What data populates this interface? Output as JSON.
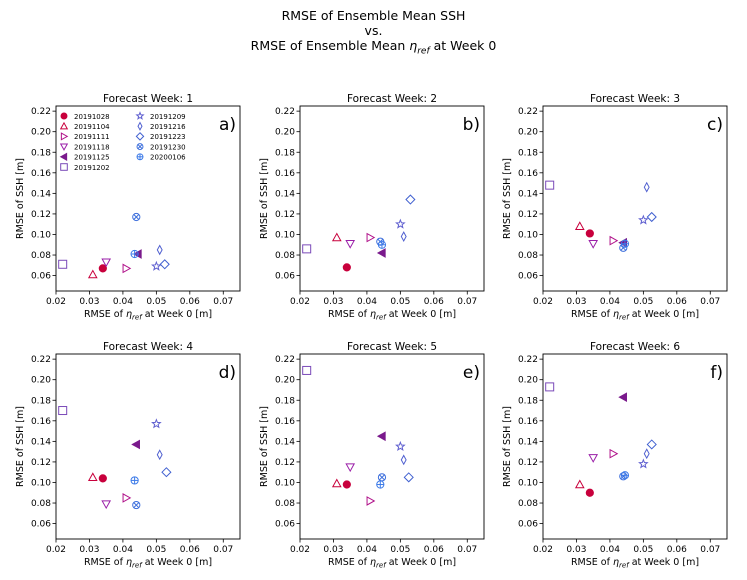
{
  "suptitle": {
    "line1": "RMSE of Ensemble Mean SSH",
    "line2": "vs.",
    "line3_prefix": "RMSE of Ensemble Mean ",
    "line3_symbol": "η",
    "line3_sub": "ref",
    "line3_suffix": " at Week 0"
  },
  "colors": {
    "c20191028": "#c8003c",
    "c20191104": "#c8003c",
    "c20191111": "#b0128a",
    "c20191118": "#9a1ea8",
    "c20191125": "#7a1a8c",
    "c20191202": "#7a4ab8",
    "c20191209": "#6060d0",
    "c20191216": "#5060d0",
    "c20191223": "#4060d0",
    "c20191230": "#3c6edc",
    "c20200106": "#3c7ae8"
  },
  "legend": [
    {
      "label": "20191028",
      "marker": "circle-filled",
      "colorKey": "c20191028"
    },
    {
      "label": "20191104",
      "marker": "triangle-up",
      "colorKey": "c20191104"
    },
    {
      "label": "20191111",
      "marker": "triangle-right",
      "colorKey": "c20191111"
    },
    {
      "label": "20191118",
      "marker": "triangle-down",
      "colorKey": "c20191118"
    },
    {
      "label": "20191125",
      "marker": "triangle-left-filled",
      "colorKey": "c20191125"
    },
    {
      "label": "20191202",
      "marker": "square",
      "colorKey": "c20191202"
    },
    {
      "label": "20191209",
      "marker": "star",
      "colorKey": "c20191209"
    },
    {
      "label": "20191216",
      "marker": "thin-diamond",
      "colorKey": "c20191216"
    },
    {
      "label": "20191223",
      "marker": "diamond",
      "colorKey": "c20191223"
    },
    {
      "label": "20191230",
      "marker": "x-circle",
      "colorKey": "c20191230"
    },
    {
      "label": "20200106",
      "marker": "plus-circle",
      "colorKey": "c20200106"
    }
  ],
  "chart_data": [
    {
      "type": "scatter",
      "title": "Forecast Week: 1",
      "panel_label": "a)",
      "xlabel_prefix": "RMSE of ",
      "xlabel_symbol": "η",
      "xlabel_sub": "ref",
      "xlabel_suffix": " at Week 0 [m]",
      "ylabel": "RMSE of SSH [m]",
      "xlim": [
        0.02,
        0.075
      ],
      "ylim": [
        0.045,
        0.225
      ],
      "xticks": [
        "0.02",
        "0.03",
        "0.04",
        "0.05",
        "0.06",
        "0.07"
      ],
      "yticks": [
        "0.06",
        "0.08",
        "0.10",
        "0.12",
        "0.14",
        "0.16",
        "0.18",
        "0.20",
        "0.22"
      ],
      "points": [
        {
          "series": "20191028",
          "x": 0.034,
          "y": 0.067
        },
        {
          "series": "20191104",
          "x": 0.031,
          "y": 0.061
        },
        {
          "series": "20191111",
          "x": 0.041,
          "y": 0.067
        },
        {
          "series": "20191118",
          "x": 0.035,
          "y": 0.073
        },
        {
          "series": "20191125",
          "x": 0.0445,
          "y": 0.081
        },
        {
          "series": "20191202",
          "x": 0.022,
          "y": 0.071
        },
        {
          "series": "20191209",
          "x": 0.05,
          "y": 0.069
        },
        {
          "series": "20191216",
          "x": 0.051,
          "y": 0.085
        },
        {
          "series": "20191223",
          "x": 0.0525,
          "y": 0.071
        },
        {
          "series": "20191230",
          "x": 0.044,
          "y": 0.117
        },
        {
          "series": "20200106",
          "x": 0.0435,
          "y": 0.081
        }
      ]
    },
    {
      "type": "scatter",
      "title": "Forecast Week: 2",
      "panel_label": "b)",
      "xlabel_prefix": "RMSE of ",
      "xlabel_symbol": "η",
      "xlabel_sub": "ref",
      "xlabel_suffix": " at Week 0 [m]",
      "ylabel": "RMSE of SSH [m]",
      "xlim": [
        0.02,
        0.075
      ],
      "ylim": [
        0.045,
        0.225
      ],
      "xticks": [
        "0.02",
        "0.03",
        "0.04",
        "0.05",
        "0.06",
        "0.07"
      ],
      "yticks": [
        "0.06",
        "0.08",
        "0.10",
        "0.12",
        "0.14",
        "0.16",
        "0.18",
        "0.20",
        "0.22"
      ],
      "points": [
        {
          "series": "20191028",
          "x": 0.034,
          "y": 0.068
        },
        {
          "series": "20191104",
          "x": 0.031,
          "y": 0.097
        },
        {
          "series": "20191111",
          "x": 0.041,
          "y": 0.097
        },
        {
          "series": "20191118",
          "x": 0.035,
          "y": 0.091
        },
        {
          "series": "20191125",
          "x": 0.0445,
          "y": 0.082
        },
        {
          "series": "20191202",
          "x": 0.022,
          "y": 0.086
        },
        {
          "series": "20191209",
          "x": 0.05,
          "y": 0.11
        },
        {
          "series": "20191216",
          "x": 0.051,
          "y": 0.098
        },
        {
          "series": "20191223",
          "x": 0.053,
          "y": 0.134
        },
        {
          "series": "20191230",
          "x": 0.044,
          "y": 0.093
        },
        {
          "series": "20200106",
          "x": 0.0445,
          "y": 0.09
        }
      ]
    },
    {
      "type": "scatter",
      "title": "Forecast Week: 3",
      "panel_label": "c)",
      "xlabel_prefix": "RMSE of ",
      "xlabel_symbol": "η",
      "xlabel_sub": "ref",
      "xlabel_suffix": " at Week 0 [m]",
      "ylabel": "RMSE of SSH [m]",
      "xlim": [
        0.02,
        0.075
      ],
      "ylim": [
        0.045,
        0.225
      ],
      "xticks": [
        "0.02",
        "0.03",
        "0.04",
        "0.05",
        "0.06",
        "0.07"
      ],
      "yticks": [
        "0.06",
        "0.08",
        "0.10",
        "0.12",
        "0.14",
        "0.16",
        "0.18",
        "0.20",
        "0.22"
      ],
      "points": [
        {
          "series": "20191028",
          "x": 0.034,
          "y": 0.101
        },
        {
          "series": "20191104",
          "x": 0.031,
          "y": 0.108
        },
        {
          "series": "20191111",
          "x": 0.041,
          "y": 0.094
        },
        {
          "series": "20191118",
          "x": 0.035,
          "y": 0.091
        },
        {
          "series": "20191125",
          "x": 0.044,
          "y": 0.092
        },
        {
          "series": "20191202",
          "x": 0.022,
          "y": 0.148
        },
        {
          "series": "20191209",
          "x": 0.05,
          "y": 0.114
        },
        {
          "series": "20191216",
          "x": 0.051,
          "y": 0.146
        },
        {
          "series": "20191223",
          "x": 0.0525,
          "y": 0.117
        },
        {
          "series": "20191230",
          "x": 0.044,
          "y": 0.087
        },
        {
          "series": "20200106",
          "x": 0.0445,
          "y": 0.091
        }
      ]
    },
    {
      "type": "scatter",
      "title": "Forecast Week: 4",
      "panel_label": "d)",
      "xlabel_prefix": "RMSE of ",
      "xlabel_symbol": "η",
      "xlabel_sub": "ref",
      "xlabel_suffix": " at Week 0 [m]",
      "ylabel": "RMSE of SSH [m]",
      "xlim": [
        0.02,
        0.075
      ],
      "ylim": [
        0.045,
        0.225
      ],
      "xticks": [
        "0.02",
        "0.03",
        "0.04",
        "0.05",
        "0.06",
        "0.07"
      ],
      "yticks": [
        "0.06",
        "0.08",
        "0.10",
        "0.12",
        "0.14",
        "0.16",
        "0.18",
        "0.20",
        "0.22"
      ],
      "points": [
        {
          "series": "20191028",
          "x": 0.034,
          "y": 0.104
        },
        {
          "series": "20191104",
          "x": 0.031,
          "y": 0.105
        },
        {
          "series": "20191111",
          "x": 0.041,
          "y": 0.085
        },
        {
          "series": "20191118",
          "x": 0.035,
          "y": 0.079
        },
        {
          "series": "20191125",
          "x": 0.044,
          "y": 0.137
        },
        {
          "series": "20191202",
          "x": 0.022,
          "y": 0.17
        },
        {
          "series": "20191209",
          "x": 0.05,
          "y": 0.157
        },
        {
          "series": "20191216",
          "x": 0.051,
          "y": 0.127
        },
        {
          "series": "20191223",
          "x": 0.053,
          "y": 0.11
        },
        {
          "series": "20191230",
          "x": 0.044,
          "y": 0.078
        },
        {
          "series": "20200106",
          "x": 0.0435,
          "y": 0.102
        }
      ]
    },
    {
      "type": "scatter",
      "title": "Forecast Week: 5",
      "panel_label": "e)",
      "xlabel_prefix": "RMSE of ",
      "xlabel_symbol": "η",
      "xlabel_sub": "ref",
      "xlabel_suffix": " at Week 0 [m]",
      "ylabel": "RMSE of SSH [m]",
      "xlim": [
        0.02,
        0.075
      ],
      "ylim": [
        0.045,
        0.225
      ],
      "xticks": [
        "0.02",
        "0.03",
        "0.04",
        "0.05",
        "0.06",
        "0.07"
      ],
      "yticks": [
        "0.06",
        "0.08",
        "0.10",
        "0.12",
        "0.14",
        "0.16",
        "0.18",
        "0.20",
        "0.22"
      ],
      "points": [
        {
          "series": "20191028",
          "x": 0.034,
          "y": 0.098
        },
        {
          "series": "20191104",
          "x": 0.031,
          "y": 0.099
        },
        {
          "series": "20191111",
          "x": 0.041,
          "y": 0.082
        },
        {
          "series": "20191118",
          "x": 0.035,
          "y": 0.115
        },
        {
          "series": "20191125",
          "x": 0.0445,
          "y": 0.145
        },
        {
          "series": "20191202",
          "x": 0.022,
          "y": 0.209
        },
        {
          "series": "20191209",
          "x": 0.05,
          "y": 0.135
        },
        {
          "series": "20191216",
          "x": 0.051,
          "y": 0.122
        },
        {
          "series": "20191223",
          "x": 0.0525,
          "y": 0.105
        },
        {
          "series": "20191230",
          "x": 0.0445,
          "y": 0.105
        },
        {
          "series": "20200106",
          "x": 0.044,
          "y": 0.098
        }
      ]
    },
    {
      "type": "scatter",
      "title": "Forecast Week: 6",
      "panel_label": "f)",
      "xlabel_prefix": "RMSE of ",
      "xlabel_symbol": "η",
      "xlabel_sub": "ref",
      "xlabel_suffix": " at Week 0 [m]",
      "ylabel": "RMSE of SSH [m]",
      "xlim": [
        0.02,
        0.075
      ],
      "ylim": [
        0.045,
        0.225
      ],
      "xticks": [
        "0.02",
        "0.03",
        "0.04",
        "0.05",
        "0.06",
        "0.07"
      ],
      "yticks": [
        "0.06",
        "0.08",
        "0.10",
        "0.12",
        "0.14",
        "0.16",
        "0.18",
        "0.20",
        "0.22"
      ],
      "points": [
        {
          "series": "20191028",
          "x": 0.034,
          "y": 0.09
        },
        {
          "series": "20191104",
          "x": 0.031,
          "y": 0.098
        },
        {
          "series": "20191111",
          "x": 0.041,
          "y": 0.128
        },
        {
          "series": "20191118",
          "x": 0.035,
          "y": 0.124
        },
        {
          "series": "20191125",
          "x": 0.044,
          "y": 0.183
        },
        {
          "series": "20191202",
          "x": 0.022,
          "y": 0.193
        },
        {
          "series": "20191209",
          "x": 0.05,
          "y": 0.118
        },
        {
          "series": "20191216",
          "x": 0.051,
          "y": 0.128
        },
        {
          "series": "20191223",
          "x": 0.0525,
          "y": 0.137
        },
        {
          "series": "20191230",
          "x": 0.044,
          "y": 0.106
        },
        {
          "series": "20200106",
          "x": 0.0445,
          "y": 0.107
        }
      ]
    }
  ]
}
